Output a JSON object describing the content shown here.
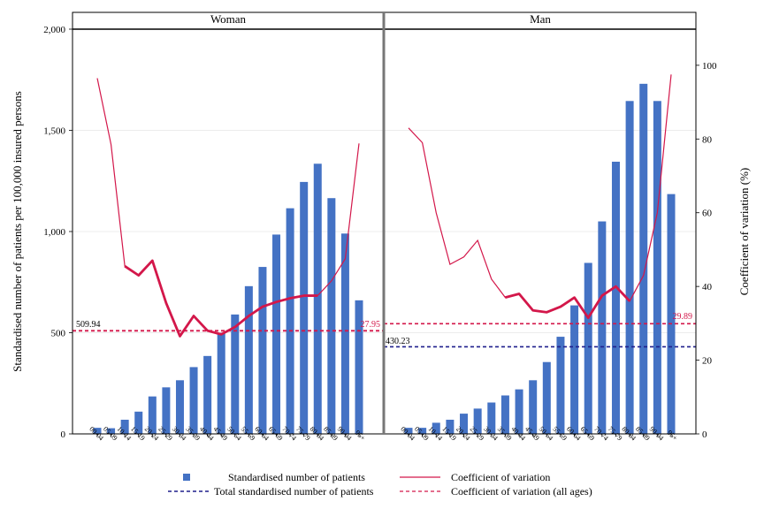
{
  "chart_data": {
    "type": "bar",
    "panels": [
      "Woman",
      "Man"
    ],
    "categories": [
      "00-04",
      "05-09",
      "10-14",
      "15-19",
      "20-24",
      "25-29",
      "30-34",
      "35-39",
      "40-44",
      "45-49",
      "50-54",
      "55-59",
      "60-64",
      "65-69",
      "70-74",
      "75-79",
      "80-84",
      "85-89",
      "90-94",
      "95+"
    ],
    "ylabel_left": "Standardised number of patients per 100,000 insured persons",
    "ylabel_right": "Coefficient of variation (%)",
    "left_ticks": [
      "0",
      "500",
      "1,000",
      "1,500",
      "2,000"
    ],
    "right_ticks": [
      "0",
      "20",
      "40",
      "60",
      "80",
      "100"
    ],
    "ylim_left": [
      0,
      2000
    ],
    "ylim_right": [
      0,
      109.8
    ],
    "series": {
      "woman": {
        "patients": [
          30,
          28,
          70,
          110,
          185,
          230,
          265,
          330,
          385,
          500,
          590,
          730,
          825,
          985,
          1115,
          1245,
          1335,
          1165,
          990,
          660
        ],
        "cv": [
          96.5,
          78.5,
          45.5,
          43,
          47,
          35.5,
          26.5,
          32,
          28,
          27,
          29,
          32,
          34.5,
          35.8,
          36.8,
          37.5,
          37.5,
          41.5,
          47.5,
          78.8
        ],
        "cv_bold": [
          null,
          null,
          45.5,
          43,
          47,
          35.5,
          26.5,
          32,
          28,
          27,
          29,
          32,
          34.5,
          35.8,
          36.8,
          37.5,
          37.5,
          null,
          null,
          null
        ],
        "total": 509.94,
        "cv_all": 27.95
      },
      "man": {
        "patients": [
          30,
          30,
          55,
          70,
          100,
          125,
          155,
          190,
          220,
          265,
          355,
          480,
          635,
          845,
          1050,
          1345,
          1645,
          1730,
          1645,
          1185
        ],
        "cv": [
          83,
          79,
          60,
          46,
          48,
          52.5,
          42,
          37,
          38,
          33.5,
          33,
          34.5,
          37,
          31.5,
          37.5,
          40,
          36,
          43,
          60,
          97.5
        ],
        "cv_bold": [
          null,
          null,
          null,
          null,
          null,
          null,
          null,
          37,
          38,
          33.5,
          33,
          34.5,
          37,
          31.5,
          37.5,
          40,
          36,
          null,
          null,
          null
        ],
        "total": 430.23,
        "cv_all": 29.89
      }
    },
    "reference_labels": {
      "woman_total": "509.94",
      "woman_cv_all": "27.95",
      "man_total": "430.23",
      "man_cv_all": "29.89"
    },
    "legend": {
      "bars": "Standardised number of patients",
      "cv": "Coefficient of variation",
      "total": "Total standardised number of patients",
      "cv_all": "Coefficient of variation (all ages)"
    },
    "colors": {
      "bar": "#4472C4",
      "cv": "#D3174A",
      "total": "#1F1F8C"
    },
    "grid": true,
    "legend_position": "bottom"
  }
}
